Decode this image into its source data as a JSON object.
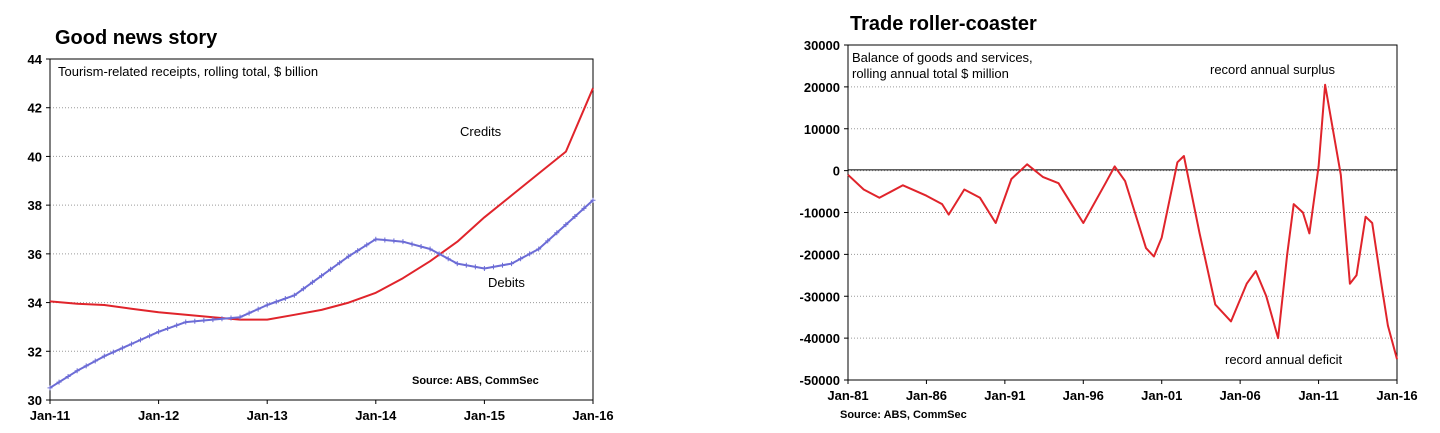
{
  "chart_data": [
    {
      "type": "line",
      "title": "Good news story",
      "subtitle": "Tourism-related receipts, rolling total, $ billion",
      "source": "Source: ABS, CommSec",
      "x_tick_labels": [
        "Jan-11",
        "Jan-12",
        "Jan-13",
        "Jan-14",
        "Jan-15",
        "Jan-16"
      ],
      "y_tick_labels": [
        "30",
        "32",
        "34",
        "36",
        "38",
        "40",
        "42",
        "44"
      ],
      "ylim": [
        30,
        44
      ],
      "xlim": [
        "2011-01",
        "2016-01"
      ],
      "grid": true,
      "series": [
        {
          "name": "Credits",
          "color": "#e0242b",
          "points": [
            [
              "2011-01",
              34.05
            ],
            [
              "2011-04",
              33.95
            ],
            [
              "2011-07",
              33.9
            ],
            [
              "2011-10",
              33.75
            ],
            [
              "2012-01",
              33.6
            ],
            [
              "2012-04",
              33.5
            ],
            [
              "2012-07",
              33.4
            ],
            [
              "2012-10",
              33.3
            ],
            [
              "2013-01",
              33.3
            ],
            [
              "2013-04",
              33.5
            ],
            [
              "2013-07",
              33.7
            ],
            [
              "2013-10",
              34.0
            ],
            [
              "2014-01",
              34.4
            ],
            [
              "2014-04",
              35.0
            ],
            [
              "2014-07",
              35.7
            ],
            [
              "2014-10",
              36.5
            ],
            [
              "2015-01",
              37.5
            ],
            [
              "2015-04",
              38.4
            ],
            [
              "2015-07",
              39.3
            ],
            [
              "2015-10",
              40.2
            ],
            [
              "2016-01",
              42.8
            ]
          ]
        },
        {
          "name": "Debits",
          "color": "#6c6cd6",
          "marker": "plus",
          "points": [
            [
              "2011-01",
              30.5
            ],
            [
              "2011-04",
              31.2
            ],
            [
              "2011-07",
              31.8
            ],
            [
              "2011-10",
              32.3
            ],
            [
              "2012-01",
              32.8
            ],
            [
              "2012-04",
              33.2
            ],
            [
              "2012-07",
              33.3
            ],
            [
              "2012-10",
              33.4
            ],
            [
              "2013-01",
              33.9
            ],
            [
              "2013-04",
              34.3
            ],
            [
              "2013-07",
              35.1
            ],
            [
              "2013-10",
              35.9
            ],
            [
              "2014-01",
              36.6
            ],
            [
              "2014-04",
              36.5
            ],
            [
              "2014-07",
              36.2
            ],
            [
              "2014-10",
              35.6
            ],
            [
              "2015-01",
              35.4
            ],
            [
              "2015-04",
              35.6
            ],
            [
              "2015-07",
              36.2
            ],
            [
              "2015-10",
              37.2
            ],
            [
              "2016-01",
              38.2
            ]
          ]
        }
      ]
    },
    {
      "type": "line",
      "title": "Trade roller-coaster",
      "subtitle_lines": [
        "Balance of goods and services,",
        "rolling annual total $ million"
      ],
      "source": "Source: ABS, CommSec",
      "x_tick_labels": [
        "Jan-81",
        "Jan-86",
        "Jan-91",
        "Jan-96",
        "Jan-01",
        "Jan-06",
        "Jan-11",
        "Jan-16"
      ],
      "y_tick_labels": [
        "-50000",
        "-40000",
        "-30000",
        "-20000",
        "-10000",
        "0",
        "10000",
        "20000",
        "30000"
      ],
      "ylim": [
        -50000,
        30000
      ],
      "xlim": [
        "1981-01",
        "2016-01"
      ],
      "grid": true,
      "annotations": [
        "record annual surplus",
        "record annual deficit"
      ],
      "series": [
        {
          "color": "#e0242b",
          "points": [
            [
              "1981-01",
              -1000
            ],
            [
              "1982-01",
              -4500
            ],
            [
              "1983-01",
              -6500
            ],
            [
              "1984-07",
              -3500
            ],
            [
              "1986-01",
              -6000
            ],
            [
              "1987-01",
              -8000
            ],
            [
              "1987-06",
              -10500
            ],
            [
              "1988-06",
              -4500
            ],
            [
              "1989-06",
              -6500
            ],
            [
              "1990-06",
              -12500
            ],
            [
              "1991-06",
              -2000
            ],
            [
              "1992-06",
              1500
            ],
            [
              "1993-06",
              -1500
            ],
            [
              "1994-06",
              -3000
            ],
            [
              "1995-06",
              -9000
            ],
            [
              "1996-01",
              -12500
            ],
            [
              "1997-06",
              -3000
            ],
            [
              "1998-01",
              1000
            ],
            [
              "1998-09",
              -2500
            ],
            [
              "2000-01",
              -18500
            ],
            [
              "2000-07",
              -20500
            ],
            [
              "2001-01",
              -16000
            ],
            [
              "2002-01",
              2000
            ],
            [
              "2002-06",
              3500
            ],
            [
              "2003-06",
              -15000
            ],
            [
              "2004-06",
              -32000
            ],
            [
              "2005-06",
              -36000
            ],
            [
              "2006-06",
              -27000
            ],
            [
              "2007-01",
              -24000
            ],
            [
              "2007-09",
              -30000
            ],
            [
              "2008-06",
              -40000
            ],
            [
              "2009-01",
              -20000
            ],
            [
              "2009-06",
              -8000
            ],
            [
              "2010-01",
              -10000
            ],
            [
              "2010-06",
              -15000
            ],
            [
              "2011-01",
              1000
            ],
            [
              "2011-06",
              20500
            ],
            [
              "2012-06",
              -1000
            ],
            [
              "2013-01",
              -27000
            ],
            [
              "2013-06",
              -25000
            ],
            [
              "2014-01",
              -11000
            ],
            [
              "2014-06",
              -12500
            ],
            [
              "2015-01",
              -27000
            ],
            [
              "2015-06",
              -37000
            ],
            [
              "2016-01",
              -45000
            ]
          ]
        }
      ]
    }
  ]
}
